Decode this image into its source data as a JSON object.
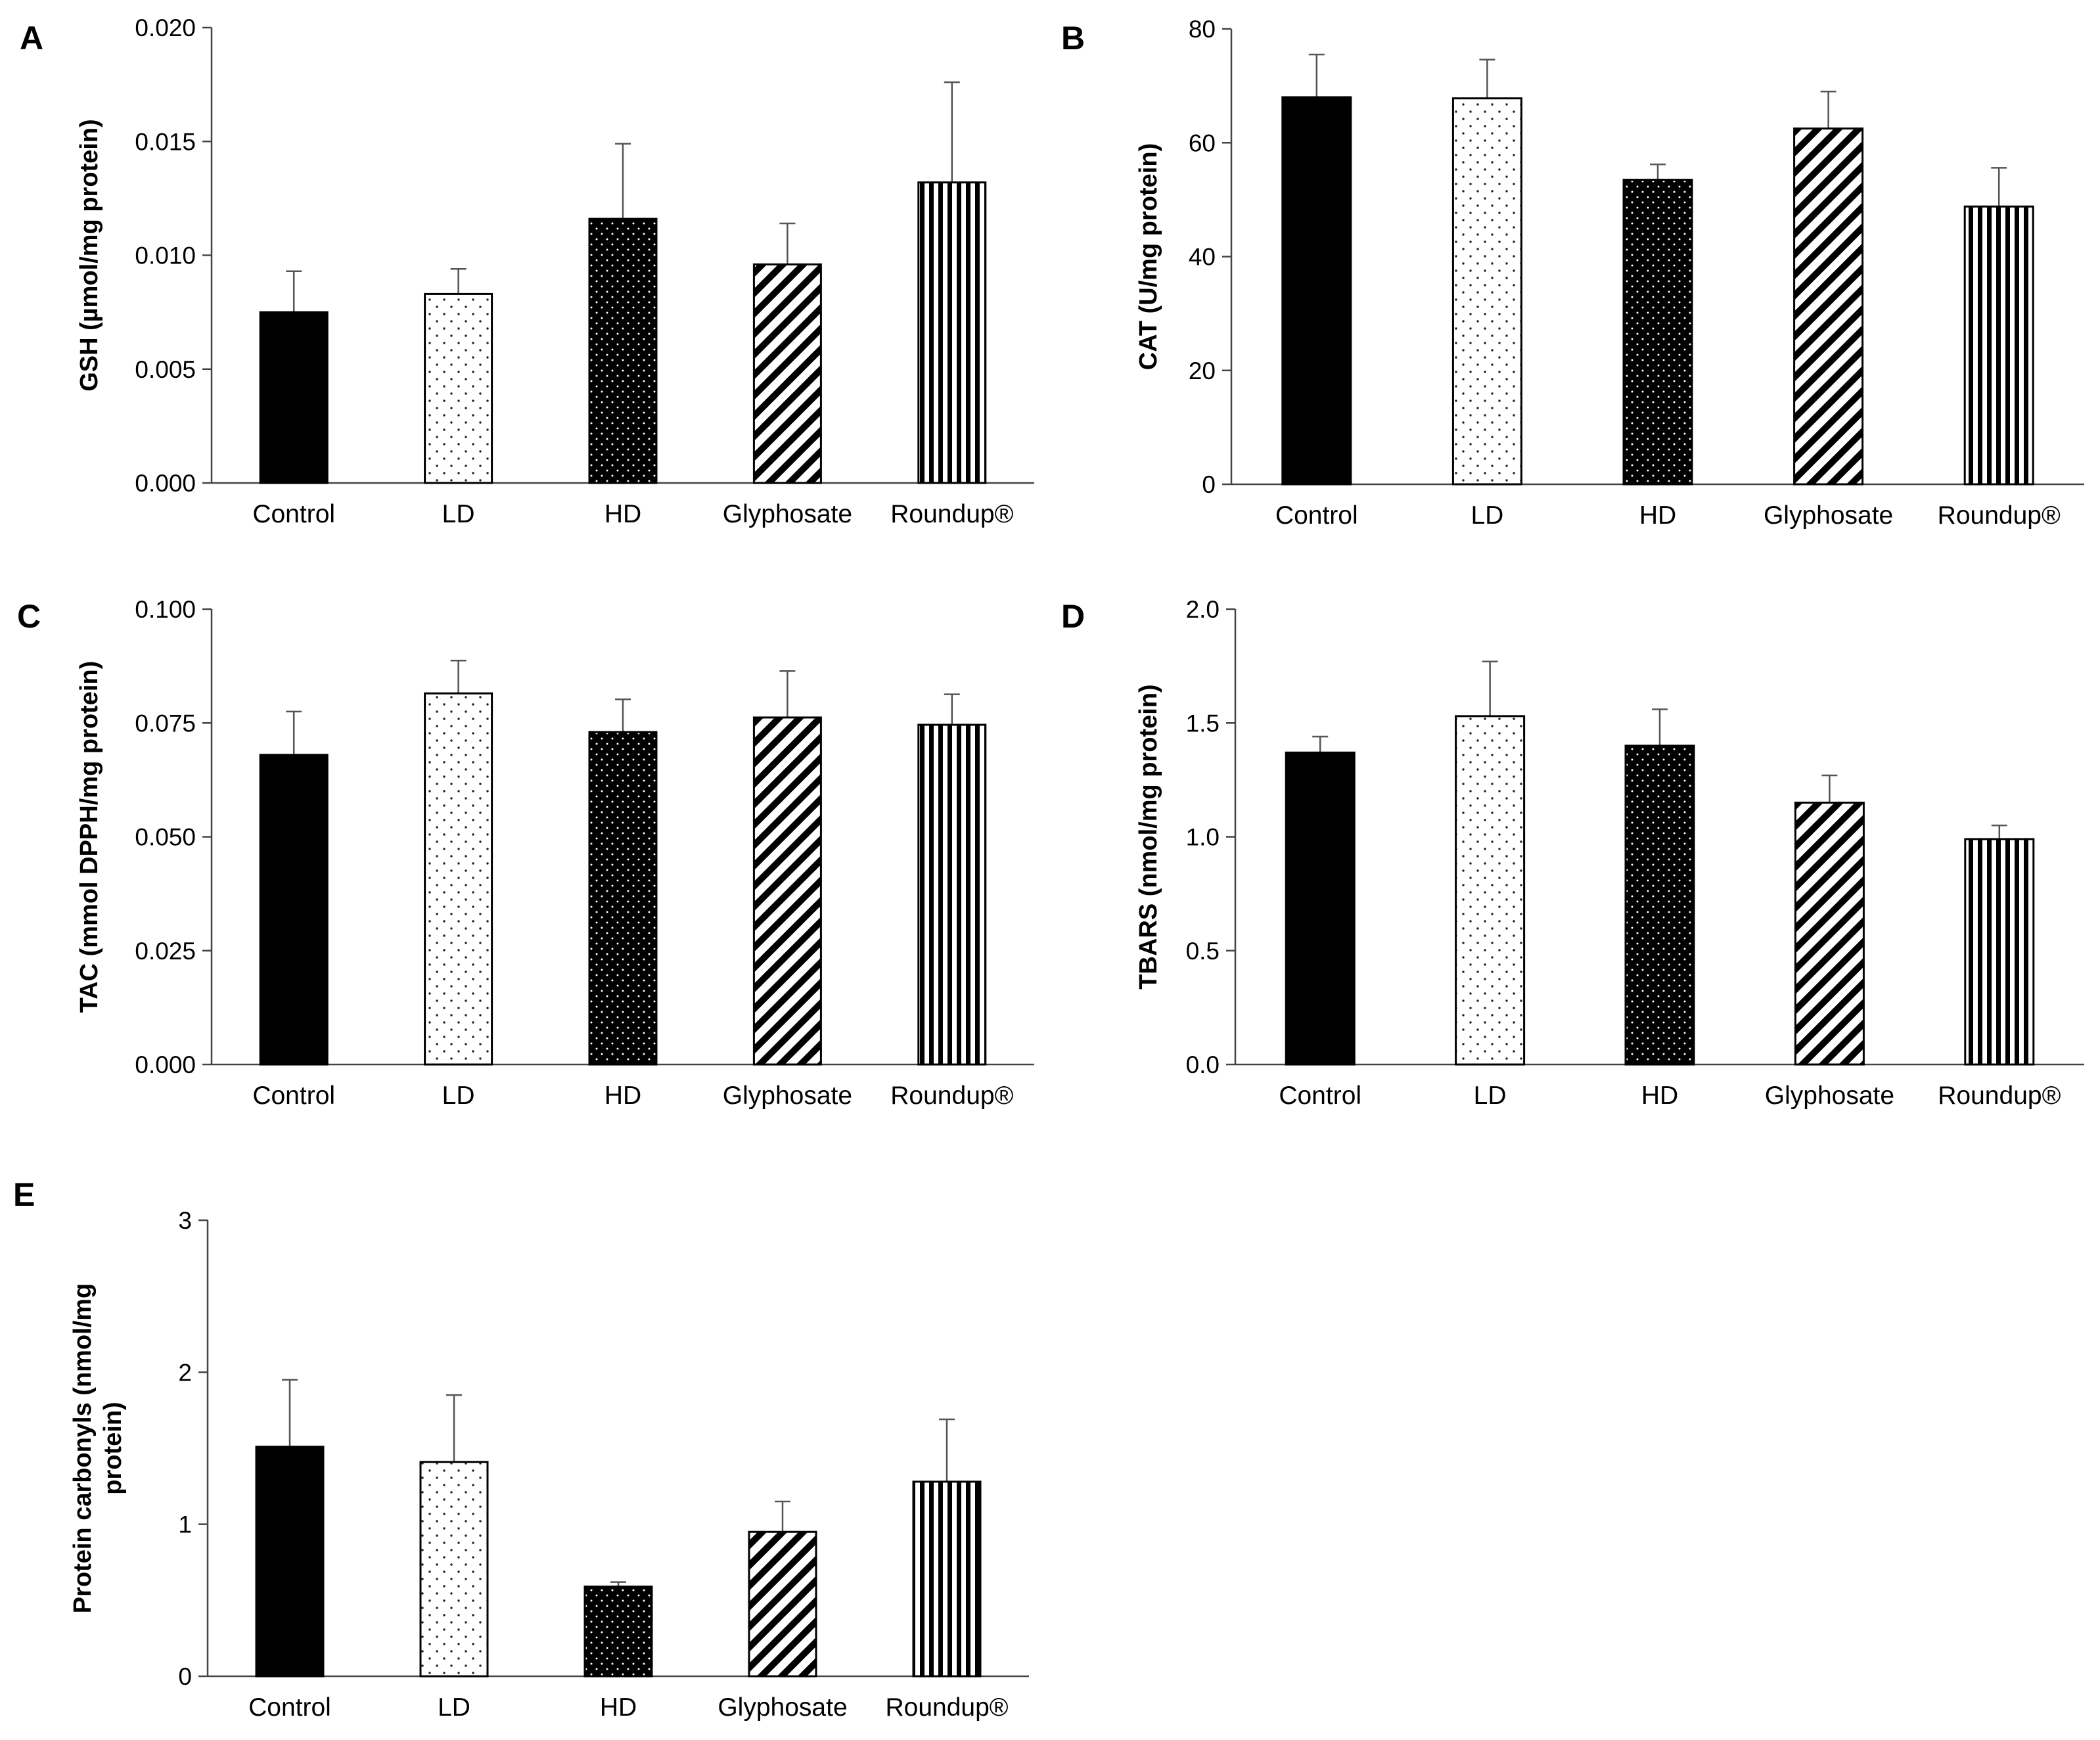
{
  "figure": {
    "colors": {
      "bar_stroke": "#000000",
      "axis": "#444444",
      "error_bar": "#555555",
      "background": "#ffffff"
    }
  },
  "chart_data": [
    {
      "panel": "A",
      "type": "bar",
      "categories": [
        "Control",
        "LD",
        "HD",
        "Glyphosate",
        "Roundup®"
      ],
      "values": [
        0.0075,
        0.0083,
        0.0116,
        0.0096,
        0.0132
      ],
      "errors": [
        0.0018,
        0.0011,
        0.0033,
        0.0018,
        0.0044
      ],
      "patterns": [
        "solid",
        "sparse-dots",
        "dense-dots",
        "diagonal",
        "vertical"
      ],
      "ylabel": "GSH (µmol/mg protein)",
      "yticks": [
        "0.000",
        "0.005",
        "0.010",
        "0.015",
        "0.020"
      ],
      "ylim": [
        0,
        0.02
      ]
    },
    {
      "panel": "B",
      "type": "bar",
      "categories": [
        "Control",
        "LD",
        "HD",
        "Glyphosate",
        "Roundup®"
      ],
      "values": [
        68.0,
        67.8,
        53.5,
        62.5,
        48.8
      ],
      "errors": [
        7.5,
        6.8,
        2.7,
        6.5,
        6.8
      ],
      "patterns": [
        "solid",
        "sparse-dots",
        "dense-dots",
        "diagonal",
        "vertical"
      ],
      "ylabel": "CAT (U/mg protein)",
      "yticks": [
        "0",
        "20",
        "40",
        "60",
        "80"
      ],
      "ylim": [
        0,
        80
      ]
    },
    {
      "panel": "C",
      "type": "bar",
      "categories": [
        "Control",
        "LD",
        "HD",
        "Glyphosate",
        "Roundup®"
      ],
      "values": [
        0.068,
        0.0815,
        0.073,
        0.0762,
        0.0746
      ],
      "errors": [
        0.0095,
        0.0072,
        0.0072,
        0.0102,
        0.0067
      ],
      "patterns": [
        "solid",
        "sparse-dots",
        "dense-dots",
        "diagonal",
        "vertical"
      ],
      "ylabel": "TAC (mmol DPPH/mg protein)",
      "yticks": [
        "0.000",
        "0.025",
        "0.050",
        "0.075",
        "0.100"
      ],
      "ylim": [
        0,
        0.1
      ]
    },
    {
      "panel": "D",
      "type": "bar",
      "categories": [
        "Control",
        "LD",
        "HD",
        "Glyphosate",
        "Roundup®"
      ],
      "values": [
        1.37,
        1.53,
        1.4,
        1.15,
        0.99
      ],
      "errors": [
        0.07,
        0.24,
        0.16,
        0.12,
        0.06
      ],
      "patterns": [
        "solid",
        "sparse-dots",
        "dense-dots",
        "diagonal",
        "vertical"
      ],
      "ylabel": "TBARS (nmol/mg protein)",
      "yticks": [
        "0.0",
        "0.5",
        "1.0",
        "1.5",
        "2.0"
      ],
      "ylim": [
        0,
        2
      ]
    },
    {
      "panel": "E",
      "type": "bar",
      "categories": [
        "Control",
        "LD",
        "HD",
        "Glyphosate",
        "Roundup®"
      ],
      "values": [
        1.51,
        1.41,
        0.59,
        0.95,
        1.28
      ],
      "errors": [
        0.44,
        0.44,
        0.03,
        0.2,
        0.41
      ],
      "patterns": [
        "solid",
        "sparse-dots",
        "dense-dots",
        "diagonal",
        "vertical"
      ],
      "ylabel": [
        "Protein carbonyls (nmol/mg",
        "protein)"
      ],
      "yticks": [
        "0",
        "1",
        "2",
        "3"
      ],
      "ylim": [
        0,
        3
      ]
    }
  ]
}
